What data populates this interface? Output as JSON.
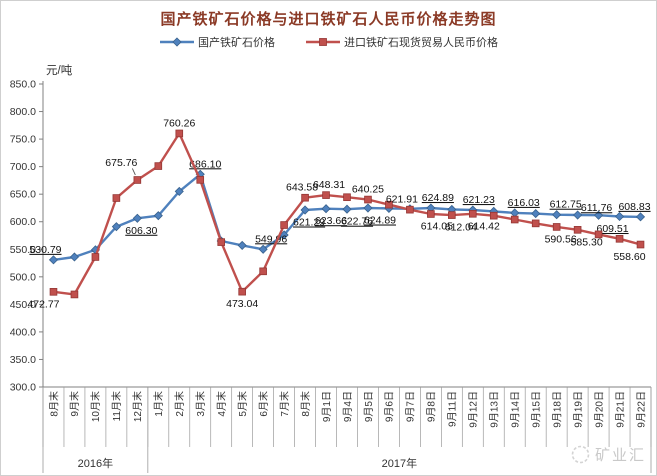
{
  "colors": {
    "title": "#8b3a26",
    "axis": "#808080",
    "tick_text": "#333333",
    "data_label_text": "#111111",
    "domestic_blue": "#4f81bd",
    "domestic_blue_dark": "#38618c",
    "import_red": "#c0504d",
    "import_red_dark": "#943634",
    "watermark": "#c9c9c9"
  },
  "watermark_text": "矿业汇",
  "chart_data": {
    "type": "line",
    "title": "国产铁矿石价格与进口铁矿石人民币价格走势图",
    "y_unit": "元/吨",
    "ylim": [
      300,
      850
    ],
    "ytick_step": 50,
    "ytick_labels": [
      "850.0",
      "800.0",
      "750.0",
      "700.0",
      "650.0",
      "600.0",
      "550.0",
      "500.0",
      "450.0",
      "400.0",
      "350.0",
      "300.0"
    ],
    "grid": false,
    "legend_position": "top",
    "categories": [
      "8月末",
      "9月末",
      "10月末",
      "11月末",
      "12月末",
      "1月末",
      "2月末",
      "3月末",
      "4月末",
      "5月末",
      "6月末",
      "7月末",
      "8月末",
      "9月1日",
      "9月4日",
      "9月5日",
      "9月6日",
      "9月7日",
      "9月8日",
      "9月11日",
      "9月12日",
      "9月13日",
      "9月14日",
      "9月15日",
      "9月18日",
      "9月19日",
      "9月20日",
      "9月21日",
      "9月22日"
    ],
    "year_groups": [
      {
        "label": "2016年",
        "span": 5
      },
      {
        "label": "2017年",
        "span": 24
      }
    ],
    "series": [
      {
        "name": "国产铁矿石价格",
        "marker": "diamond",
        "label_underline": true,
        "values": [
          530.79,
          536,
          549,
          591,
          606.3,
          611,
          655,
          686.1,
          565,
          557,
          549.96,
          576,
          621.29,
          623.66,
          622.76,
          624.89,
          624.2,
          623.4,
          624.89,
          622.3,
          621.23,
          618.8,
          616.03,
          614.8,
          612.75,
          612.2,
          611.76,
          609.51,
          608.83
        ],
        "point_labels": [
          {
            "i": 0,
            "text": "530.79",
            "pos": "above",
            "dx": -8
          },
          {
            "i": 4,
            "text": "606.30",
            "pos": "below",
            "dx": 4
          },
          {
            "i": 7,
            "text": "686.10",
            "pos": "above",
            "dx": 5
          },
          {
            "i": 10,
            "text": "549.96",
            "pos": "above",
            "dx": 8
          },
          {
            "i": 12,
            "text": "621.29",
            "pos": "below",
            "dx": 4
          },
          {
            "i": 13,
            "text": "623.66",
            "pos": "below",
            "dx": 5
          },
          {
            "i": 14,
            "text": "622.76",
            "pos": "below",
            "dx": 10
          },
          {
            "i": 15,
            "text": "624.89",
            "pos": "below",
            "dx": 12
          },
          {
            "i": 18,
            "text": "624.89",
            "pos": "above",
            "dx": 7
          },
          {
            "i": 20,
            "text": "621.23",
            "pos": "above",
            "dx": 6
          },
          {
            "i": 22,
            "text": "616.03",
            "pos": "above",
            "dx": 9
          },
          {
            "i": 24,
            "text": "612.75",
            "pos": "above",
            "dx": 9
          },
          {
            "i": 26,
            "text": "611.76",
            "pos": "above",
            "dx": -2,
            "dy": 3
          },
          {
            "i": 27,
            "text": "609.51",
            "pos": "below",
            "dx": -7
          },
          {
            "i": 28,
            "text": "608.83",
            "pos": "above",
            "dx": -6
          }
        ]
      },
      {
        "name": "进口铁矿石现货贸易人民币价格",
        "marker": "square",
        "label_underline": false,
        "values": [
          472.77,
          468,
          536,
          643,
          675.76,
          701,
          760.26,
          676,
          563,
          473.04,
          510,
          594,
          643.58,
          648.31,
          644.5,
          640.25,
          631,
          621.91,
          614.05,
          612.04,
          614.42,
          611,
          604,
          597,
          590.56,
          585.3,
          577,
          569,
          558.6
        ],
        "point_labels": [
          {
            "i": 0,
            "text": "472.77",
            "pos": "below",
            "dx": -10
          },
          {
            "i": 4,
            "text": "675.76",
            "pos": "above",
            "dx": -16,
            "dy": -7,
            "leader": true
          },
          {
            "i": 6,
            "text": "760.26",
            "pos": "above"
          },
          {
            "i": 9,
            "text": "473.04",
            "pos": "below"
          },
          {
            "i": 12,
            "text": "643.58",
            "pos": "above",
            "dx": -3
          },
          {
            "i": 13,
            "text": "648.31",
            "pos": "above",
            "dx": 3
          },
          {
            "i": 15,
            "text": "640.25",
            "pos": "above"
          },
          {
            "i": 17,
            "text": "621.91",
            "pos": "above",
            "dx": -8
          },
          {
            "i": 18,
            "text": "614.05",
            "pos": "below",
            "dx": 6
          },
          {
            "i": 19,
            "text": "612.04",
            "pos": "below",
            "dx": 9
          },
          {
            "i": 20,
            "text": "614.42",
            "pos": "below",
            "dx": 11
          },
          {
            "i": 24,
            "text": "590.56",
            "pos": "below",
            "dx": 4
          },
          {
            "i": 25,
            "text": "585.30",
            "pos": "below",
            "dx": 9
          },
          {
            "i": 28,
            "text": "558.60",
            "pos": "below",
            "dx": -11
          }
        ]
      }
    ]
  }
}
